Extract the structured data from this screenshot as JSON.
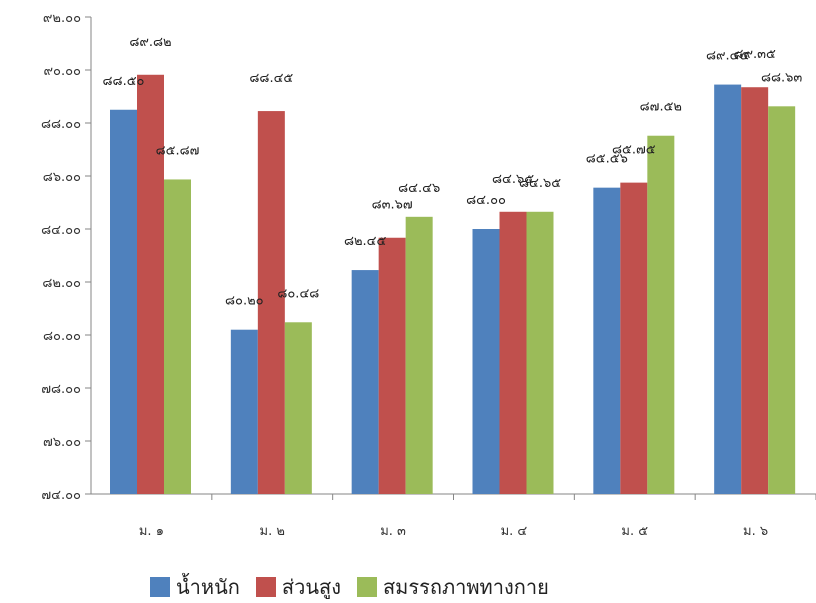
{
  "chart_data": {
    "type": "bar",
    "categories": [
      "ม. ๑",
      "ม. ๒",
      "ม. ๓",
      "ม. ๔",
      "ม. ๕",
      "ม. ๖"
    ],
    "series": [
      {
        "name": "น้ำหนัก",
        "color": "#4f81bd",
        "values": [
          88.5,
          80.2,
          82.45,
          84.0,
          85.56,
          89.45
        ],
        "labels": [
          "๘๘.๕๐",
          "๘๐.๒๐",
          "๘๒.๔๕",
          "๘๔.๐๐",
          "๘๕.๕๖",
          "๘๙.๔๕"
        ]
      },
      {
        "name": "ส่วนสูง",
        "color": "#c0504d",
        "values": [
          89.82,
          88.45,
          83.67,
          84.65,
          85.75,
          89.35
        ],
        "labels": [
          "๘๙.๘๒",
          "๘๘.๔๕",
          "๘๓.๖๗",
          "๘๔.๖๕",
          "๘๕.๗๕",
          "๘๙.๓๕"
        ]
      },
      {
        "name": "สมรรถภาพทางกาย",
        "color": "#9bbb59",
        "values": [
          85.87,
          80.48,
          84.46,
          84.65,
          87.52,
          88.63
        ],
        "labels": [
          "๘๕.๘๗",
          "๘๐.๔๘",
          "๘๔.๔๖",
          "๘๔.๖๕",
          "๘๗.๕๒",
          "๘๘.๖๓"
        ]
      }
    ],
    "ylim": [
      74,
      92
    ],
    "yticks": [
      74,
      76,
      78,
      80,
      82,
      84,
      86,
      88,
      90,
      92
    ],
    "ytick_labels": [
      "๗๔.๐๐",
      "๗๖.๐๐",
      "๗๘.๐๐",
      "๘๐.๐๐",
      "๘๒.๐๐",
      "๘๔.๐๐",
      "๘๖.๐๐",
      "๘๘.๐๐",
      "๙๐.๐๐",
      "๙๒.๐๐"
    ],
    "grid": false,
    "legend_position": "bottom"
  }
}
